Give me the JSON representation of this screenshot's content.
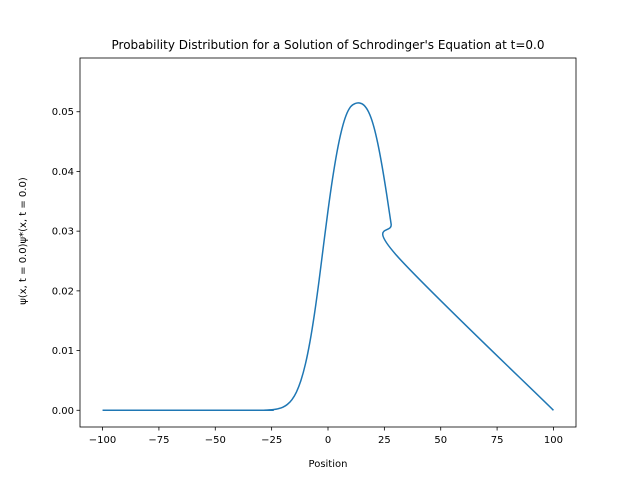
{
  "chart_data": {
    "type": "line",
    "title": "Probability Distribution for a Solution of Schrodinger's Equation at t=0.0",
    "xlabel": "Position",
    "ylabel": "ψ(x, t = 0.0)ψ*(x, t = 0.0)",
    "xlim": [
      -110,
      110
    ],
    "ylim": [
      -0.0028,
      0.059
    ],
    "xticks": [
      -100,
      -75,
      -50,
      -25,
      0,
      25,
      50,
      75,
      100
    ],
    "xtick_labels": [
      "−100",
      "−75",
      "−50",
      "−25",
      "0",
      "25",
      "50",
      "75",
      "100"
    ],
    "yticks": [
      0.0,
      0.01,
      0.02,
      0.03,
      0.04,
      0.05
    ],
    "ytick_labels": [
      "0.00",
      "0.01",
      "0.02",
      "0.03",
      "0.04",
      "0.05"
    ],
    "grid": false,
    "line_color": "#1f77b4",
    "series": [
      {
        "x": [
          -100,
          -30,
          -28,
          -26,
          -24,
          -22,
          -20,
          -18,
          -16,
          -14,
          -12,
          -10,
          -8,
          -6,
          -4,
          -2,
          0,
          2,
          4,
          6,
          8,
          10,
          12,
          14,
          16,
          18,
          20,
          22,
          24,
          26,
          28,
          30,
          100
        ],
        "values": [
          0.0,
          1e-05,
          3e-05,
          6e-05,
          0.00013,
          0.00027,
          0.00052,
          0.00099,
          0.00178,
          0.00306,
          0.00501,
          0.00777,
          0.01149,
          0.01615,
          0.02162,
          0.02759,
          0.03344,
          0.03875,
          0.04328,
          0.04685,
          0.04937,
          0.05082,
          0.05137,
          0.05147,
          0.05108,
          0.04996,
          0.04792,
          0.04484,
          0.04086,
          0.03622,
          0.03117,
          0.02612,
          0.0
        ]
      }
    ]
  }
}
